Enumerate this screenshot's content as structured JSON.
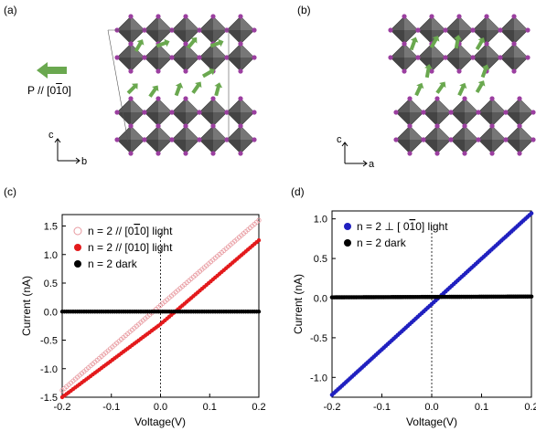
{
  "panels": {
    "a": {
      "label": "(a)",
      "polarization": "P // [0",
      "polarization_bar": "1",
      "polarization_end": "0]",
      "axis_c": "c",
      "axis_b": "b"
    },
    "b": {
      "label": "(b)",
      "axis_c": "c",
      "axis_a": "a"
    },
    "c": {
      "label": "(c)"
    },
    "d": {
      "label": "(d)"
    }
  },
  "colors": {
    "octahedron": "#5a5a5a",
    "atom": "#9b3fa0",
    "arrow": "#6aa84f",
    "red": "#e31a1c",
    "pink": "#e89aa0",
    "black": "#000000",
    "blue": "#2020c0"
  },
  "chart_data": [
    {
      "type": "scatter",
      "xlabel": "Voltage(V)",
      "ylabel": "Current (nA)",
      "xlim": [
        -0.2,
        0.2
      ],
      "ylim": [
        -1.5,
        1.7
      ],
      "xticks": [
        "-0.2",
        "-0.1",
        "0.0",
        "0.1",
        "0.2"
      ],
      "yticks": [
        "-1.5",
        "-1.0",
        "-0.5",
        "0.0",
        "0.5",
        "1.0",
        "1.5"
      ],
      "legend_position": "top-left",
      "series": [
        {
          "name_pre": "n = 2 // [0",
          "name_bar": "1",
          "name_post": "0] light",
          "marker": "open-circle",
          "x": [
            -0.2,
            0.2
          ],
          "y": [
            -1.38,
            1.6
          ]
        },
        {
          "name_pre": "n = 2 // [010] light",
          "name_bar": "",
          "name_post": "",
          "marker": "filled-circle",
          "x": [
            -0.2,
            0.0,
            0.2
          ],
          "y": [
            -1.5,
            -0.22,
            1.25
          ]
        },
        {
          "name_pre": "n = 2 dark",
          "name_bar": "",
          "name_post": "",
          "marker": "filled-circle",
          "x": [
            -0.2,
            0.2
          ],
          "y": [
            0.0,
            0.0
          ]
        }
      ]
    },
    {
      "type": "scatter",
      "xlabel": "Voltage(V)",
      "ylabel": "Current (nA)",
      "xlim": [
        -0.2,
        0.2
      ],
      "ylim": [
        -1.25,
        1.1
      ],
      "xticks": [
        "-0.2",
        "-0.1",
        "0.0",
        "0.1",
        "0.2"
      ],
      "yticks": [
        "-1.0",
        "-0.5",
        "0.0",
        "0.5",
        "1.0"
      ],
      "legend_position": "top-left",
      "series": [
        {
          "name_pre": "n = 2 ⊥  [ 0",
          "name_bar": "1",
          "name_post": "0] light",
          "marker": "filled-circle",
          "x": [
            -0.2,
            0.2
          ],
          "y": [
            -1.22,
            1.07
          ]
        },
        {
          "name_pre": "n = 2 dark",
          "name_bar": "",
          "name_post": "",
          "marker": "filled-circle",
          "x": [
            -0.2,
            0.2
          ],
          "y": [
            0.01,
            0.02
          ]
        }
      ]
    }
  ]
}
